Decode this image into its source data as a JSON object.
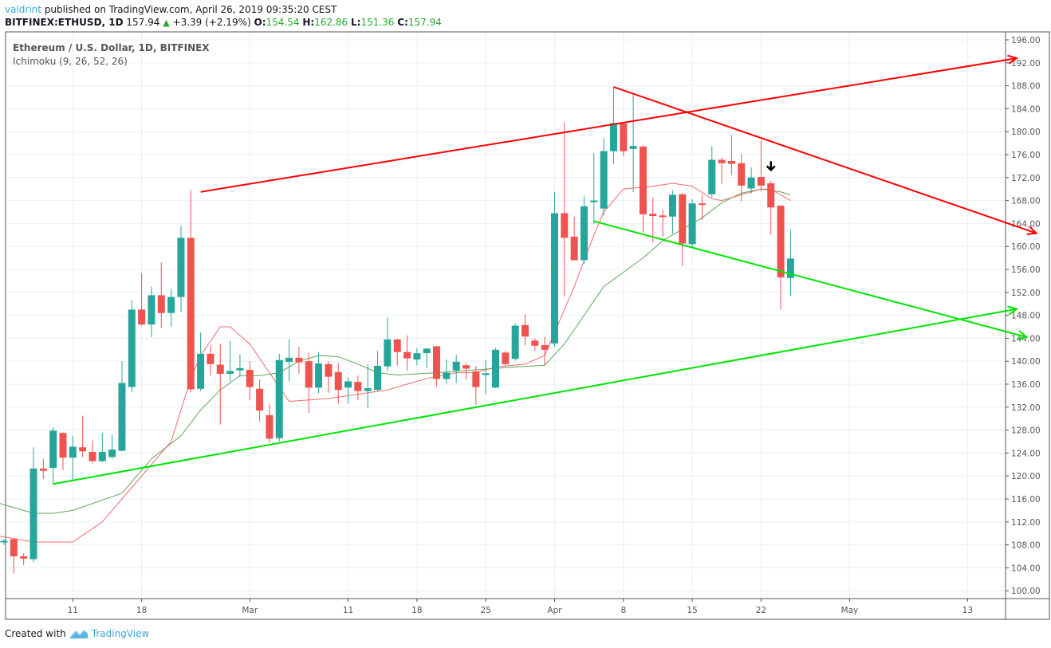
{
  "header": {
    "username": "valdrint",
    "published_text": "published on TradingView.com, April 26, 2019 09:35:20 CEST",
    "symbol": "BITFINEX:ETHUSD, 1D",
    "last_price": "157.94",
    "change_arrow": "▲",
    "change": "+3.39 (+2.19%)",
    "o_label": "O:",
    "o_value": "154.54",
    "h_label": "H:",
    "h_value": "162.86",
    "l_label": "L:",
    "l_value": "151.36",
    "c_label": "C:",
    "c_value": "157.94"
  },
  "legend": {
    "title": "Ethereum / U.S. Dollar, 1D, BITFINEX",
    "indicator": "Ichimoku (9, 26, 52, 26)"
  },
  "footer": {
    "created_with": "Created with",
    "brand": "TradingView"
  },
  "colors": {
    "up": "#26a69a",
    "down": "#ef5350",
    "tenkan": "#f26b6b",
    "kijun": "#5fa55a",
    "resistance_lines": "#ff0000",
    "support_lines": "#00e600",
    "grid": "#e8f0f7",
    "axis": "#555555"
  },
  "chart_data": {
    "type": "candlestick",
    "title": "Ethereum / U.S. Dollar, 1D, BITFINEX",
    "indicator": "Ichimoku (9, 26, 52, 26)",
    "ylim": [
      99,
      197
    ],
    "yticks": [
      "196.00",
      "192.00",
      "188.00",
      "184.00",
      "180.00",
      "176.00",
      "172.00",
      "168.00",
      "164.00",
      "160.00",
      "156.00",
      "152.00",
      "148.00",
      "144.00",
      "140.00",
      "136.00",
      "132.00",
      "128.00",
      "124.00",
      "120.00",
      "116.00",
      "112.00",
      "108.00",
      "104.00",
      "100.00"
    ],
    "xticks": [
      {
        "label": "11",
        "day": 7
      },
      {
        "label": "18",
        "day": 14
      },
      {
        "label": "Mar",
        "day": 25
      },
      {
        "label": "11",
        "day": 35
      },
      {
        "label": "18",
        "day": 42
      },
      {
        "label": "25",
        "day": 49
      },
      {
        "label": "Apr",
        "day": 56
      },
      {
        "label": "8",
        "day": 63
      },
      {
        "label": "15",
        "day": 70
      },
      {
        "label": "22",
        "day": 77
      },
      {
        "label": "May",
        "day": 86
      },
      {
        "label": "13",
        "day": 98
      }
    ],
    "candles": [
      {
        "d": 0,
        "o": 108.5,
        "h": 109,
        "l": 108,
        "c": 108.7
      },
      {
        "d": 1,
        "o": 109,
        "h": 109.2,
        "l": 103,
        "c": 106
      },
      {
        "d": 2,
        "o": 106,
        "h": 106.5,
        "l": 104.5,
        "c": 105.6
      },
      {
        "d": 3,
        "o": 105.5,
        "h": 125,
        "l": 105,
        "c": 121.3
      },
      {
        "d": 4,
        "o": 121.3,
        "h": 123,
        "l": 119.5,
        "c": 120.9
      },
      {
        "d": 5,
        "o": 121.4,
        "h": 128.5,
        "l": 118.5,
        "c": 127.9
      },
      {
        "d": 6,
        "o": 127.5,
        "h": 127.6,
        "l": 121,
        "c": 123.2
      },
      {
        "d": 7,
        "o": 123.2,
        "h": 127,
        "l": 119.2,
        "c": 125.1
      },
      {
        "d": 8,
        "o": 125,
        "h": 130.5,
        "l": 123.3,
        "c": 124.3
      },
      {
        "d": 9,
        "o": 124.2,
        "h": 126.2,
        "l": 122.2,
        "c": 122.6
      },
      {
        "d": 10,
        "o": 122.6,
        "h": 127.5,
        "l": 122.4,
        "c": 124.2
      },
      {
        "d": 11,
        "o": 123.3,
        "h": 127.2,
        "l": 123,
        "c": 124.6
      },
      {
        "d": 12,
        "o": 124.4,
        "h": 140,
        "l": 124.3,
        "c": 136.2
      },
      {
        "d": 13,
        "o": 135.5,
        "h": 150.6,
        "l": 134.6,
        "c": 149
      },
      {
        "d": 14,
        "o": 149,
        "h": 155.4,
        "l": 146.2,
        "c": 146.4
      },
      {
        "d": 15,
        "o": 146.4,
        "h": 153,
        "l": 144.2,
        "c": 151.5
      },
      {
        "d": 16,
        "o": 151.5,
        "h": 157.2,
        "l": 145.8,
        "c": 148.4
      },
      {
        "d": 17,
        "o": 148.4,
        "h": 152.6,
        "l": 146,
        "c": 151.2
      },
      {
        "d": 18,
        "o": 151.2,
        "h": 163.6,
        "l": 148.6,
        "c": 161.5
      },
      {
        "d": 19,
        "o": 161.5,
        "h": 169.8,
        "l": 134.6,
        "c": 135.1
      },
      {
        "d": 20,
        "o": 135.2,
        "h": 145,
        "l": 134.8,
        "c": 141.3
      },
      {
        "d": 21,
        "o": 141.3,
        "h": 142.7,
        "l": 137.5,
        "c": 139.5
      },
      {
        "d": 22,
        "o": 139.4,
        "h": 143,
        "l": 129,
        "c": 137.8
      },
      {
        "d": 23,
        "o": 137.8,
        "h": 143.5,
        "l": 136.5,
        "c": 138.3
      },
      {
        "d": 24,
        "o": 138.4,
        "h": 141.2,
        "l": 137.3,
        "c": 138.8
      },
      {
        "d": 25,
        "o": 138.5,
        "h": 140,
        "l": 133.2,
        "c": 135.5
      },
      {
        "d": 26,
        "o": 135.2,
        "h": 136.8,
        "l": 129.5,
        "c": 131.4
      },
      {
        "d": 27,
        "o": 130.6,
        "h": 132.5,
        "l": 125.8,
        "c": 126.5
      },
      {
        "d": 28,
        "o": 126.6,
        "h": 141.3,
        "l": 126,
        "c": 140.2
      },
      {
        "d": 29,
        "o": 139.9,
        "h": 143.8,
        "l": 136.5,
        "c": 140.6
      },
      {
        "d": 30,
        "o": 140.6,
        "h": 142.5,
        "l": 137.8,
        "c": 139.8
      },
      {
        "d": 31,
        "o": 140,
        "h": 141.5,
        "l": 131,
        "c": 135.4
      },
      {
        "d": 32,
        "o": 135.4,
        "h": 141.6,
        "l": 134.4,
        "c": 139.6
      },
      {
        "d": 33,
        "o": 139.5,
        "h": 140,
        "l": 134.5,
        "c": 137.3
      },
      {
        "d": 34,
        "o": 138.1,
        "h": 139.7,
        "l": 132.6,
        "c": 135
      },
      {
        "d": 35,
        "o": 135.4,
        "h": 137.2,
        "l": 132.6,
        "c": 136.5
      },
      {
        "d": 36,
        "o": 136.4,
        "h": 137.5,
        "l": 133.2,
        "c": 134.8
      },
      {
        "d": 37,
        "o": 134.8,
        "h": 139.5,
        "l": 131.8,
        "c": 135.3
      },
      {
        "d": 38,
        "o": 135,
        "h": 141.8,
        "l": 134.8,
        "c": 139.2
      },
      {
        "d": 39,
        "o": 139.1,
        "h": 147.6,
        "l": 138.3,
        "c": 143.8
      },
      {
        "d": 40,
        "o": 143.8,
        "h": 143.9,
        "l": 139.2,
        "c": 141.6
      },
      {
        "d": 41,
        "o": 141.6,
        "h": 144.5,
        "l": 138.3,
        "c": 140.5
      },
      {
        "d": 42,
        "o": 140.3,
        "h": 142.3,
        "l": 139.3,
        "c": 141.4
      },
      {
        "d": 43,
        "o": 141.4,
        "h": 142.3,
        "l": 138.8,
        "c": 142.2
      },
      {
        "d": 44,
        "o": 142.6,
        "h": 142.7,
        "l": 135.6,
        "c": 136.9
      },
      {
        "d": 45,
        "o": 136.9,
        "h": 140.3,
        "l": 136.1,
        "c": 138
      },
      {
        "d": 46,
        "o": 138.4,
        "h": 141.1,
        "l": 136.2,
        "c": 139.9
      },
      {
        "d": 47,
        "o": 139.3,
        "h": 139.7,
        "l": 136.8,
        "c": 138.7
      },
      {
        "d": 48,
        "o": 138.2,
        "h": 139.2,
        "l": 132.4,
        "c": 135.5
      },
      {
        "d": 49,
        "o": 137.6,
        "h": 140.2,
        "l": 134.3,
        "c": 137.9
      },
      {
        "d": 50,
        "o": 135.4,
        "h": 142.3,
        "l": 135.3,
        "c": 142.0
      },
      {
        "d": 51,
        "o": 141.5,
        "h": 141.8,
        "l": 139.1,
        "c": 139.5
      },
      {
        "d": 52,
        "o": 140.4,
        "h": 146.6,
        "l": 140.1,
        "c": 146.2
      },
      {
        "d": 53,
        "o": 146.3,
        "h": 148.2,
        "l": 142.8,
        "c": 144.3
      },
      {
        "d": 54,
        "o": 143.6,
        "h": 144,
        "l": 141.8,
        "c": 142.7
      },
      {
        "d": 55,
        "o": 142.8,
        "h": 144.3,
        "l": 139.4,
        "c": 142.0
      },
      {
        "d": 56,
        "o": 143.1,
        "h": 169.5,
        "l": 142.6,
        "c": 165.8
      },
      {
        "d": 57,
        "o": 165.8,
        "h": 181.6,
        "l": 151.3,
        "c": 161.5
      },
      {
        "d": 58,
        "o": 161.7,
        "h": 165.2,
        "l": 158.4,
        "c": 157.6
      },
      {
        "d": 59,
        "o": 157.6,
        "h": 168.7,
        "l": 157.0,
        "c": 167.0
      },
      {
        "d": 60,
        "o": 167.7,
        "h": 176.3,
        "l": 163.9,
        "c": 168.0
      },
      {
        "d": 61,
        "o": 166.6,
        "h": 178.9,
        "l": 165.4,
        "c": 176.6
      },
      {
        "d": 62,
        "o": 176.6,
        "h": 187.8,
        "l": 174.4,
        "c": 181.5
      },
      {
        "d": 63,
        "o": 181.4,
        "h": 181.7,
        "l": 175.7,
        "c": 176.6
      },
      {
        "d": 64,
        "o": 177.0,
        "h": 186.6,
        "l": 169.5,
        "c": 177.5
      },
      {
        "d": 65,
        "o": 177.4,
        "h": 177.6,
        "l": 162.4,
        "c": 165.6
      },
      {
        "d": 66,
        "o": 165.7,
        "h": 168.5,
        "l": 160.7,
        "c": 165.3
      },
      {
        "d": 67,
        "o": 165.4,
        "h": 166.4,
        "l": 161.8,
        "c": 165.2
      },
      {
        "d": 68,
        "o": 165.2,
        "h": 169.8,
        "l": 162.2,
        "c": 169.0
      },
      {
        "d": 69,
        "o": 169.1,
        "h": 169.3,
        "l": 156.6,
        "c": 160.5
      },
      {
        "d": 70,
        "o": 160.4,
        "h": 168.2,
        "l": 159.8,
        "c": 167.5
      },
      {
        "d": 71,
        "o": 167.5,
        "h": 169.0,
        "l": 164.6,
        "c": 167.4
      },
      {
        "d": 72,
        "o": 169.1,
        "h": 177.5,
        "l": 168.6,
        "c": 175.1
      },
      {
        "d": 73,
        "o": 175.1,
        "h": 175.5,
        "l": 170.9,
        "c": 174.5
      },
      {
        "d": 74,
        "o": 174.9,
        "h": 179.4,
        "l": 172.5,
        "c": 174.4
      },
      {
        "d": 75,
        "o": 174.5,
        "h": 176.1,
        "l": 167.9,
        "c": 170.6
      },
      {
        "d": 76,
        "o": 170.1,
        "h": 173.8,
        "l": 169.2,
        "c": 172.0
      },
      {
        "d": 77,
        "o": 172.1,
        "h": 178.4,
        "l": 169.6,
        "c": 170.6
      },
      {
        "d": 78,
        "o": 171.0,
        "h": 171.4,
        "l": 162.0,
        "c": 166.8
      },
      {
        "d": 79,
        "o": 167.1,
        "h": 167.2,
        "l": 149.0,
        "c": 154.6
      },
      {
        "d": 80,
        "o": 154.5,
        "h": 162.9,
        "l": 151.4,
        "c": 157.9
      }
    ],
    "ichimoku_lines": {
      "tenkan_sen": [
        [
          -2,
          110
        ],
        [
          3,
          108.5
        ],
        [
          7,
          108.5
        ],
        [
          10,
          112
        ],
        [
          12,
          116
        ],
        [
          17,
          126
        ],
        [
          19,
          137
        ],
        [
          20,
          141
        ],
        [
          22,
          146
        ],
        [
          23,
          146
        ],
        [
          25,
          143
        ],
        [
          27,
          138
        ],
        [
          29,
          133
        ],
        [
          33,
          133.5
        ],
        [
          35,
          134
        ],
        [
          39,
          135
        ],
        [
          41,
          136
        ],
        [
          43,
          137
        ],
        [
          46,
          138
        ],
        [
          48,
          138
        ],
        [
          50,
          139
        ],
        [
          53,
          139.5
        ],
        [
          55,
          141
        ],
        [
          56,
          145
        ],
        [
          58,
          153
        ],
        [
          60,
          162
        ],
        [
          61,
          166
        ],
        [
          63,
          170
        ],
        [
          66,
          170.5
        ],
        [
          68,
          171
        ],
        [
          70,
          170.5
        ],
        [
          72,
          168.3
        ],
        [
          73,
          168
        ],
        [
          75,
          169
        ],
        [
          77,
          170
        ],
        [
          78,
          170
        ],
        [
          80,
          168
        ]
      ],
      "kijun_sen": [
        [
          -2,
          116
        ],
        [
          3,
          113.5
        ],
        [
          5,
          113.5
        ],
        [
          7,
          114
        ],
        [
          12,
          117
        ],
        [
          15,
          123
        ],
        [
          18,
          127
        ],
        [
          20,
          131.5
        ],
        [
          22,
          135
        ],
        [
          24,
          137.5
        ],
        [
          26,
          137.5
        ],
        [
          28,
          138
        ],
        [
          30,
          140
        ],
        [
          32,
          141
        ],
        [
          34,
          140.8
        ],
        [
          36,
          139.5
        ],
        [
          38,
          138
        ],
        [
          40,
          137.6
        ],
        [
          44,
          138
        ],
        [
          48,
          138.5
        ],
        [
          52,
          139
        ],
        [
          55,
          139.3
        ],
        [
          57,
          143
        ],
        [
          59,
          148
        ],
        [
          61,
          153
        ],
        [
          63,
          155.5
        ],
        [
          65,
          158
        ],
        [
          67,
          161
        ],
        [
          69,
          163
        ],
        [
          71,
          165
        ],
        [
          73,
          167.6
        ],
        [
          75,
          169.3
        ],
        [
          77,
          170
        ],
        [
          79,
          169.5
        ],
        [
          80,
          169
        ]
      ]
    },
    "drawings": [
      {
        "name": "upper-resistance-line",
        "color": "#ff0000",
        "from": [
          20,
          169.5
        ],
        "to": [
          103,
          192.8
        ],
        "arrow": true
      },
      {
        "name": "descending-resistance-line",
        "color": "#ff0000",
        "from": [
          62,
          187.8
        ],
        "to": [
          105,
          162.3
        ],
        "arrow": true
      },
      {
        "name": "descending-support-line",
        "color": "#00e600",
        "from": [
          60,
          164.4
        ],
        "to": [
          104,
          144.2
        ],
        "arrow": true
      },
      {
        "name": "ascending-support-line",
        "color": "#00e600",
        "from": [
          5,
          118.6
        ],
        "to": [
          103,
          149.1
        ],
        "arrow": true
      }
    ],
    "annotations": [
      {
        "type": "down-arrow",
        "day": 78,
        "price": 174,
        "color": "#000000"
      }
    ]
  }
}
